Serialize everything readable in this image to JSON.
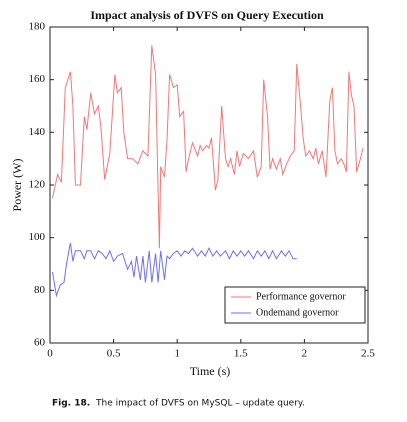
{
  "chart_data": {
    "type": "line",
    "title": "Impact analysis of DVFS on Query Execution",
    "x_label": "Time (s)",
    "y_label": "Power (W)",
    "xlim": [
      0,
      2.5
    ],
    "xticks": [
      0,
      0.5,
      1,
      1.5,
      2,
      2.5
    ],
    "ylim": [
      60,
      180
    ],
    "yticks": [
      60,
      80,
      100,
      120,
      140,
      160,
      180
    ],
    "grid": false,
    "legend": "lower right",
    "series": [
      {
        "name": "Performance governor",
        "color": "#f07878",
        "x": [
          0.02,
          0.06,
          0.09,
          0.12,
          0.16,
          0.18,
          0.2,
          0.24,
          0.27,
          0.29,
          0.32,
          0.35,
          0.38,
          0.4,
          0.43,
          0.47,
          0.51,
          0.53,
          0.56,
          0.58,
          0.61,
          0.65,
          0.69,
          0.73,
          0.77,
          0.8,
          0.83,
          0.84,
          0.86,
          0.87,
          0.9,
          0.92,
          0.94,
          0.97,
          1.0,
          1.02,
          1.05,
          1.07,
          1.09,
          1.12,
          1.16,
          1.18,
          1.2,
          1.23,
          1.25,
          1.27,
          1.3,
          1.32,
          1.35,
          1.38,
          1.4,
          1.42,
          1.45,
          1.47,
          1.49,
          1.52,
          1.54,
          1.56,
          1.6,
          1.63,
          1.66,
          1.68,
          1.71,
          1.73,
          1.75,
          1.78,
          1.81,
          1.83,
          1.86,
          1.89,
          1.92,
          1.94,
          1.97,
          1.99,
          2.01,
          2.04,
          2.07,
          2.09,
          2.11,
          2.14,
          2.17,
          2.2,
          2.22,
          2.24,
          2.26,
          2.29,
          2.31,
          2.33,
          2.35,
          2.37,
          2.39,
          2.41,
          2.44,
          2.46
        ],
        "values": [
          115,
          124,
          121,
          157,
          163,
          150,
          120,
          120,
          146,
          141,
          155,
          147,
          150,
          142,
          122,
          132,
          162,
          155,
          157,
          140,
          130,
          130,
          128,
          133,
          131,
          173,
          162,
          140,
          96,
          127,
          123,
          137,
          162,
          157,
          158,
          146,
          148,
          125,
          130,
          136,
          131,
          135,
          133,
          135,
          134,
          138,
          118,
          122,
          150,
          130,
          127,
          130,
          124,
          133,
          127,
          132,
          131,
          130,
          133,
          123,
          127,
          160,
          146,
          126,
          130,
          126,
          130,
          124,
          128,
          131,
          133,
          166,
          150,
          138,
          131,
          133,
          130,
          134,
          128,
          133,
          123,
          152,
          157,
          133,
          128,
          130,
          128,
          125,
          163,
          154,
          150,
          125,
          130,
          134
        ]
      },
      {
        "name": "Ondemand governor",
        "color": "#7070f0",
        "x": [
          0.02,
          0.05,
          0.08,
          0.11,
          0.13,
          0.16,
          0.18,
          0.2,
          0.24,
          0.27,
          0.29,
          0.32,
          0.35,
          0.38,
          0.41,
          0.44,
          0.47,
          0.5,
          0.53,
          0.57,
          0.59,
          0.61,
          0.64,
          0.66,
          0.68,
          0.71,
          0.73,
          0.75,
          0.78,
          0.8,
          0.83,
          0.85,
          0.87,
          0.9,
          0.92,
          0.94,
          0.97,
          1.0,
          1.03,
          1.06,
          1.09,
          1.12,
          1.16,
          1.19,
          1.22,
          1.25,
          1.28,
          1.31,
          1.34,
          1.38,
          1.41,
          1.44,
          1.47,
          1.5,
          1.53,
          1.56,
          1.6,
          1.63,
          1.66,
          1.69,
          1.72,
          1.75,
          1.78,
          1.82,
          1.85,
          1.88,
          1.91,
          1.94
        ],
        "values": [
          87,
          78,
          82,
          83,
          90,
          98,
          91,
          95,
          95,
          92,
          95,
          95,
          92,
          95,
          94,
          92,
          95,
          91,
          93,
          94,
          91,
          88,
          91,
          85,
          93,
          84,
          93,
          83,
          95,
          83,
          94,
          83,
          95,
          84,
          93,
          92,
          94,
          95,
          93,
          95,
          94,
          96,
          93,
          95,
          93,
          96,
          93,
          95,
          93,
          95,
          92,
          95,
          93,
          95,
          93,
          95,
          92,
          95,
          93,
          95,
          92,
          95,
          92,
          95,
          93,
          95,
          92,
          92
        ]
      }
    ]
  },
  "caption": {
    "label": "Fig. 18.",
    "text": "The impact of DVFS on MySQL – update query."
  }
}
